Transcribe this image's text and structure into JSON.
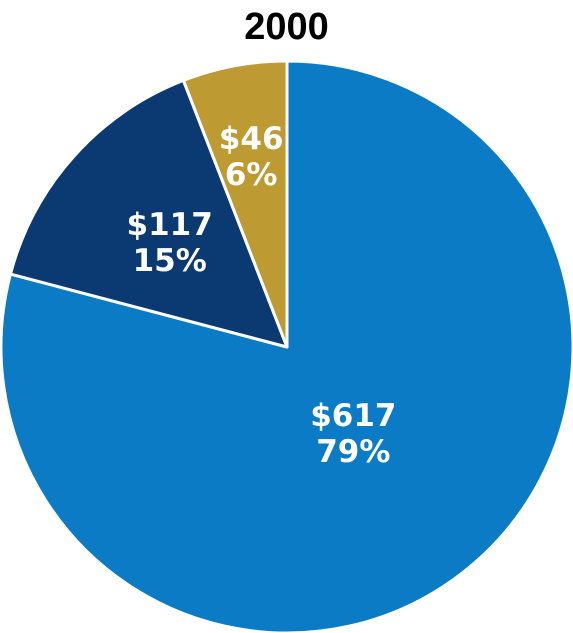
{
  "chart_data": {
    "type": "pie",
    "title": "2000",
    "slices": [
      {
        "value": 617,
        "value_label": "$617",
        "percent_label": "79%",
        "color": "#0A7BC4"
      },
      {
        "value": 117,
        "value_label": "$117",
        "percent_label": "15%",
        "color": "#0B3A73"
      },
      {
        "value": 46,
        "value_label": "$46",
        "percent_label": "6%",
        "color": "#BE9A32"
      }
    ],
    "start_angle": "12 o'clock",
    "direction": "clockwise"
  }
}
